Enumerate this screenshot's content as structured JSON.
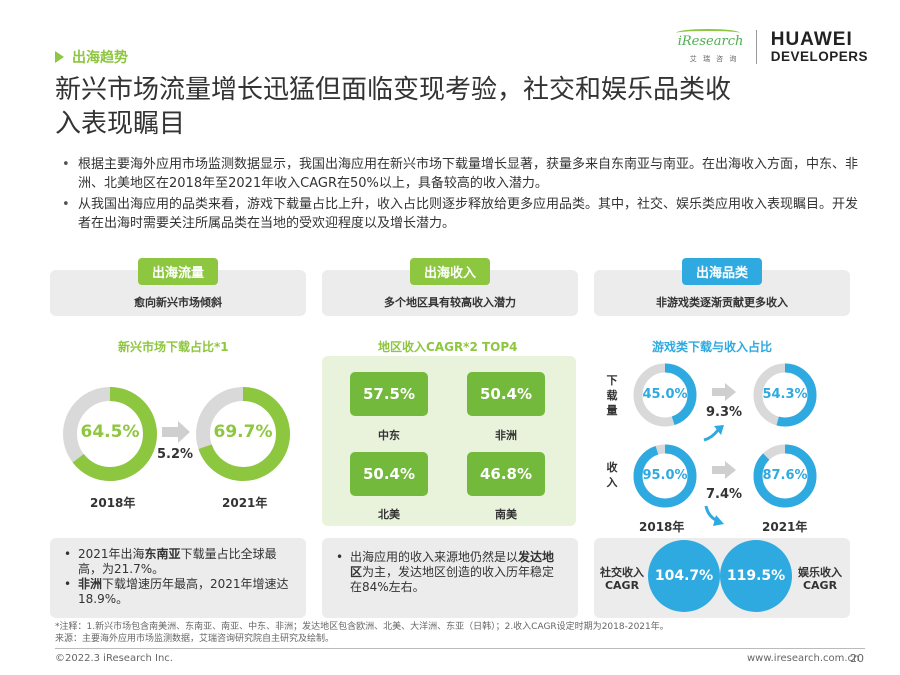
{
  "section": "出海趋势",
  "logos": {
    "iresearch_name": "iResearch",
    "iresearch_sub": "艾 瑞 咨 询",
    "huawei_line1": "HUAWEI",
    "huawei_line2": "DEVELOPERS"
  },
  "title": "新兴市场流量增长迅猛但面临变现考验，社交和娱乐品类收入表现瞩目",
  "bullets": [
    "根据主要海外应用市场监测数据显示，我国出海应用在新兴市场下载量增长显著，获量多来自东南亚与南亚。在出海收入方面，中东、非洲、北美地区在2018年至2021年收入CAGR在50%以上，具备较高的收入潜力。",
    "从我国出海应用的品类来看，游戏下载量占比上升，收入占比则逐步释放给更多应用品类。其中，社交、娱乐类应用收入表现瞩目。开发者在出海时需要关注所属品类在当地的受欢迎程度以及增长潜力。"
  ],
  "panels": {
    "traffic": {
      "pill": "出海流量",
      "sub": "愈向新兴市场倾斜",
      "chart_title": "新兴市场下载占比*1",
      "value_2018": "64.5%",
      "value_2021": "69.7%",
      "delta": "5.2%",
      "year_2018": "2018年",
      "year_2021": "2021年",
      "note_line1_a": "2021年出海",
      "note_line1_b": "东南亚",
      "note_line1_c": "下载量占比全球最高，为21.7%。",
      "note_line2_a": "非洲",
      "note_line2_b": "下载增速历年最高，2021年增速达18.9%。"
    },
    "revenue": {
      "pill": "出海收入",
      "sub": "多个地区具有较高收入潜力",
      "chart_title": "地区收入CAGR*2 TOP4",
      "regions": [
        {
          "value": "57.5%",
          "name": "中东"
        },
        {
          "value": "50.4%",
          "name": "非洲"
        },
        {
          "value": "50.4%",
          "name": "北美"
        },
        {
          "value": "46.8%",
          "name": "南美"
        }
      ],
      "note_a": "出海应用的收入来源地仍然是以",
      "note_b": "发达地区",
      "note_c": "为主，发达地区创造的收入历年稳定在84%左右。"
    },
    "category": {
      "pill": "出海品类",
      "sub": "非游戏类逐渐贡献更多收入",
      "chart_title": "游戏类下载与收入占比",
      "row_download": "下载量",
      "row_revenue": "收入",
      "dl_2018": "45.0%",
      "dl_2021": "54.3%",
      "dl_delta": "9.3%",
      "rev_2018": "95.0%",
      "rev_2021": "87.6%",
      "rev_delta": "7.4%",
      "year_2018": "2018年",
      "year_2021": "2021年",
      "social_label": "社交收入CAGR",
      "social_value": "104.7%",
      "ent_label": "娱乐收入CAGR",
      "ent_value": "119.5%"
    }
  },
  "chart_data": [
    {
      "type": "pie",
      "title": "新兴市场下载占比*1",
      "categories": [
        "2018年",
        "2021年"
      ],
      "values": [
        64.5,
        69.7
      ]
    },
    {
      "type": "bar",
      "title": "地区收入CAGR*2 TOP4",
      "categories": [
        "中东",
        "非洲",
        "北美",
        "南美"
      ],
      "values": [
        57.5,
        50.4,
        50.4,
        46.8
      ]
    },
    {
      "type": "pie",
      "title": "游戏类下载与收入占比",
      "series": [
        {
          "name": "下载量",
          "values": [
            45.0,
            54.3
          ]
        },
        {
          "name": "收入",
          "values": [
            95.0,
            87.6
          ]
        }
      ],
      "categories": [
        "2018年",
        "2021年"
      ]
    }
  ],
  "footnote_line1": "*注释：1.新兴市场包含南美洲、东南亚、南亚、中东、非洲；发达地区包含欧洲、北美、大洋洲、东亚（日韩）；2.收入CAGR设定时期为2018-2021年。",
  "footnote_line2": "来源：主要海外应用市场监测数据，艾瑞咨询研究院自主研究及绘制。",
  "footer_left": "©2022.3 iResearch Inc.",
  "footer_right": "www.iresearch.com.cn",
  "page_number": "20",
  "colors": {
    "green": "#8dc63f",
    "dark_green": "#73b93b",
    "blue": "#2eaae0",
    "gray": "#d9d9d9"
  }
}
